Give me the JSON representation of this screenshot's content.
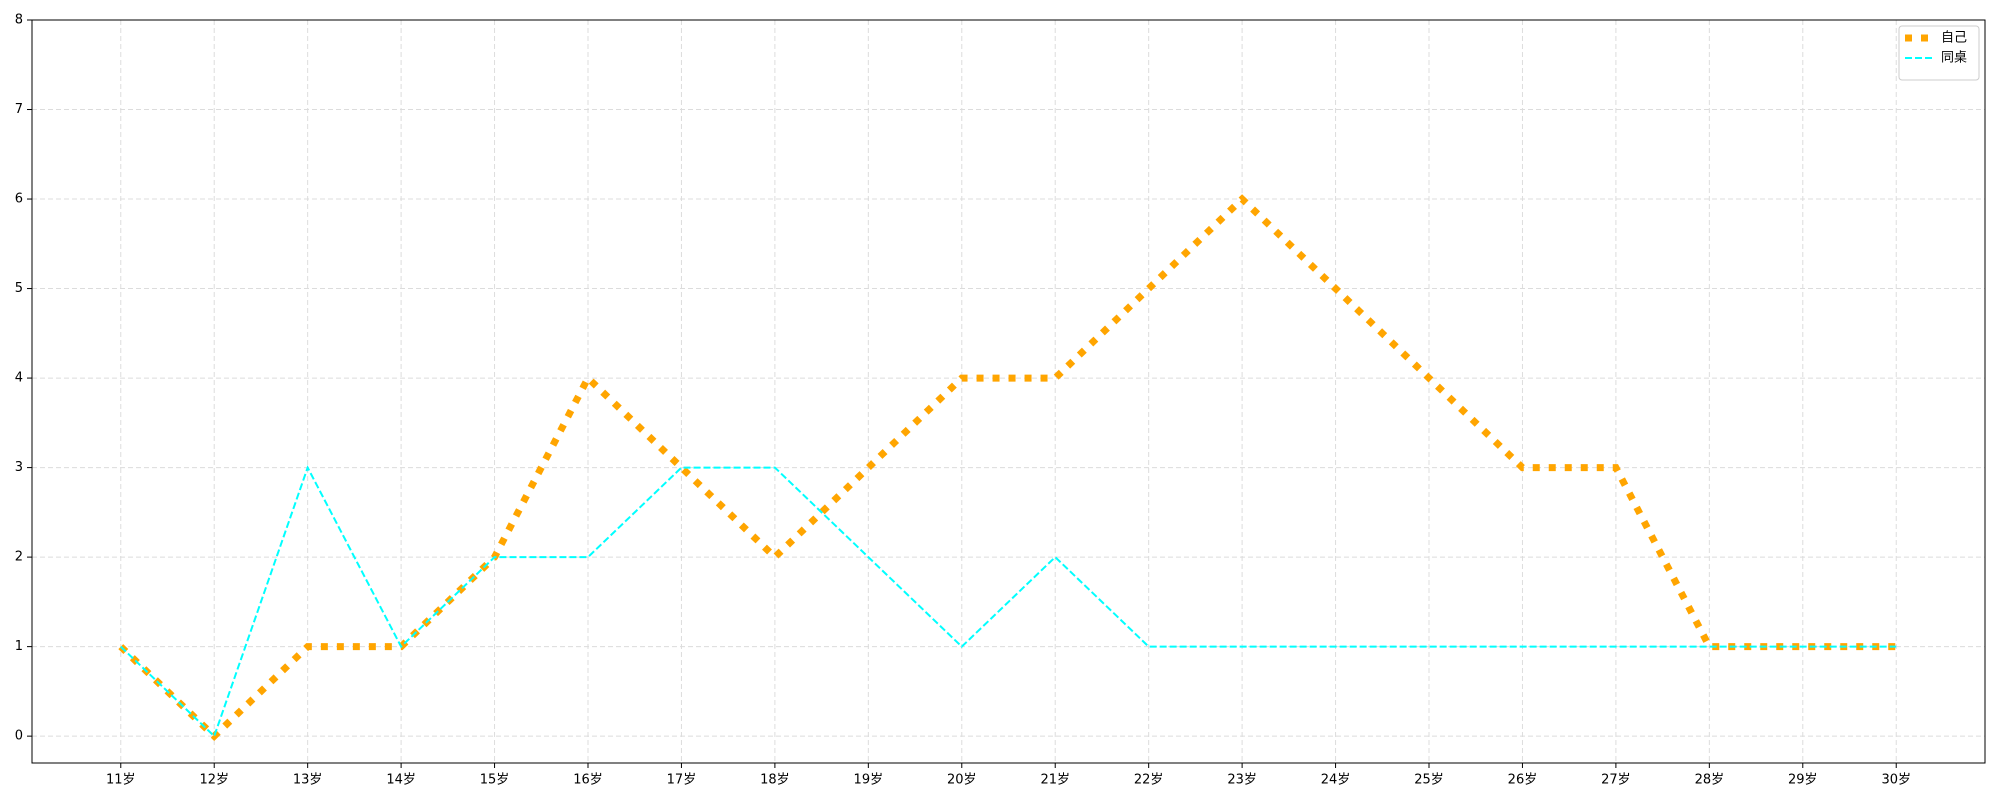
{
  "chart_data": {
    "type": "line",
    "categories": [
      "11岁",
      "12岁",
      "13岁",
      "14岁",
      "15岁",
      "16岁",
      "17岁",
      "18岁",
      "19岁",
      "20岁",
      "21岁",
      "22岁",
      "23岁",
      "24岁",
      "25岁",
      "26岁",
      "27岁",
      "28岁",
      "29岁",
      "30岁"
    ],
    "series": [
      {
        "name": "自己",
        "color": "#ffa500",
        "linestyle": "dotted",
        "values": [
          1,
          0,
          1,
          1,
          2,
          4,
          3,
          2,
          3,
          4,
          4,
          5,
          6,
          5,
          4,
          3,
          3,
          1,
          1,
          1
        ]
      },
      {
        "name": "同桌",
        "color": "#00ffff",
        "linestyle": "dashed",
        "values": [
          1,
          0,
          3,
          1,
          2,
          2,
          3,
          3,
          2,
          1,
          2,
          1,
          1,
          1,
          1,
          1,
          1,
          1,
          1,
          1
        ]
      }
    ],
    "ylim": [
      -0.3,
      8
    ],
    "yticks": [
      0,
      1,
      2,
      3,
      4,
      5,
      6,
      7,
      8
    ],
    "grid": true,
    "legend": "upper right"
  }
}
